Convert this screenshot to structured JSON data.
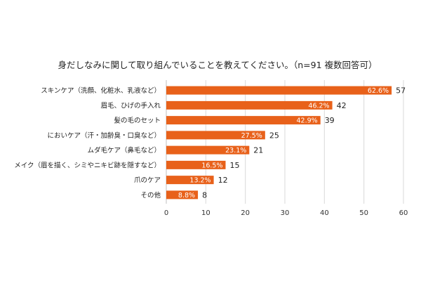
{
  "chart_data": {
    "type": "bar",
    "orientation": "horizontal",
    "title": "身だしなみに関して取り組んでいることを教えてください。（n=91 複数回答可）",
    "categories": [
      "スキンケア（洗顔、化粧水、乳液など）",
      "眉毛、ひげの手入れ",
      "髪の毛のセット",
      "においケア（汗・加齢臭・口臭など）",
      "ムダ毛ケア（鼻毛など）",
      "メイク（眉を描く、シミやニキビ跡を隠すなど）",
      "爪のケア",
      "その他"
    ],
    "values": [
      57,
      42,
      39,
      25,
      21,
      15,
      12,
      8
    ],
    "percent_labels": [
      "62.6%",
      "46.2%",
      "42.9%",
      "27.5%",
      "23.1%",
      "16.5%",
      "13.2%",
      "8.8%"
    ],
    "xlim": [
      0,
      60
    ],
    "xticks": [
      0,
      10,
      20,
      30,
      40,
      50,
      60
    ],
    "grid": true,
    "bar_color": "#e8611a",
    "legend": "none",
    "xlabel": "",
    "ylabel": ""
  }
}
